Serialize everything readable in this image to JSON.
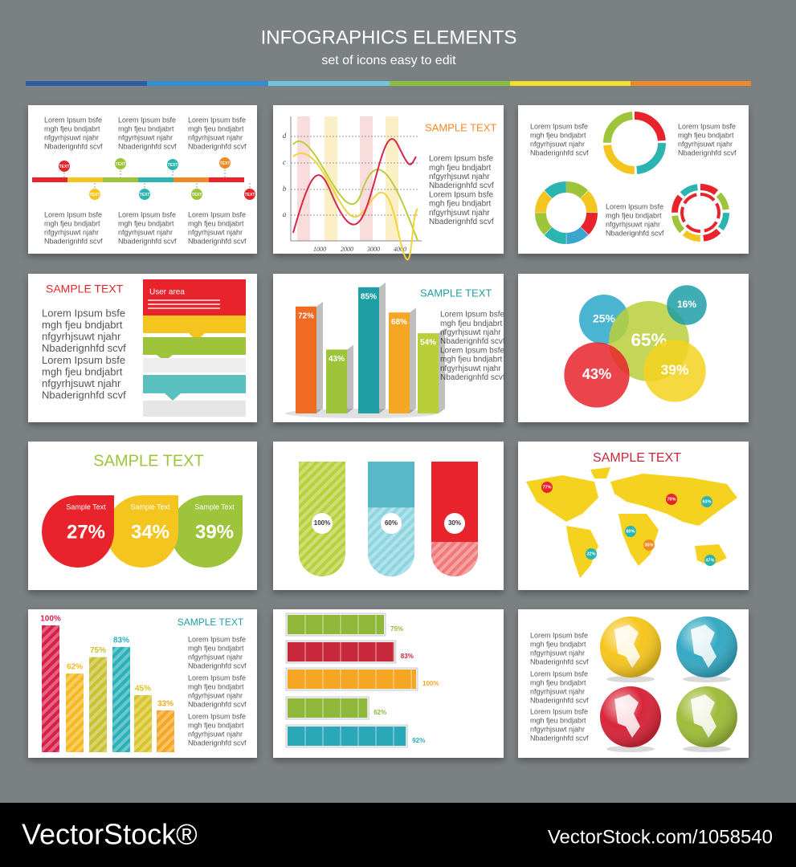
{
  "header": {
    "title": "INFOGRAPHICS ELEMENTS",
    "subtitle": "set of icons easy to edit"
  },
  "lorem": [
    "Lorem Ipsum bsfe",
    "mgh fjeu bndjabrt",
    "nfgyrhjsuwt njahr",
    "Nbaderignhfd scvf"
  ],
  "panels": {
    "timeline": {
      "marker_label": "TEXT"
    },
    "line_chart": {
      "title": "SAMPLE TEXT",
      "y_labels": [
        "a",
        "b",
        "c",
        "d"
      ],
      "x_labels": [
        "1000",
        "2000",
        "3000",
        "4000"
      ]
    },
    "user_area": {
      "title": "SAMPLE TEXT",
      "widget_title": "User area"
    },
    "bars_3d": {
      "title": "SAMPLE TEXT",
      "values": [
        72,
        43,
        85,
        68,
        54
      ],
      "value_labels": [
        "72%",
        "43%",
        "85%",
        "68%",
        "54%"
      ]
    },
    "bubbles": {
      "values": [
        25,
        65,
        16,
        43,
        39
      ],
      "value_labels": [
        "25%",
        "65%",
        "16%",
        "43%",
        "39%"
      ]
    },
    "circles": {
      "title": "SAMPLE TEXT",
      "items": [
        {
          "caption": "Sample Text",
          "label": "27%"
        },
        {
          "caption": "Sample Text",
          "label": "34%"
        },
        {
          "caption": "Sample Text",
          "label": "39%"
        }
      ]
    },
    "tubes": {
      "values": [
        100,
        60,
        30
      ],
      "value_labels": [
        "100%",
        "60%",
        "30%"
      ]
    },
    "map": {
      "title": "SAMPLE TEXT",
      "labels": [
        "77%",
        "70%",
        "63%",
        "80%",
        "35%",
        "32%",
        "47%"
      ]
    },
    "bars": {
      "title": "SAMPLE TEXT",
      "values": [
        100,
        62,
        75,
        83,
        45,
        33
      ],
      "value_labels": [
        "100%",
        "62%",
        "75%",
        "83%",
        "45%",
        "33%"
      ]
    },
    "hbars": {
      "values": [
        75,
        83,
        100,
        62,
        92
      ],
      "value_labels": [
        "75%",
        "83%",
        "100%",
        "62%",
        "92%"
      ]
    }
  },
  "footer": {
    "brand": "VectorStock®",
    "url": "VectorStock.com/1058540"
  }
}
